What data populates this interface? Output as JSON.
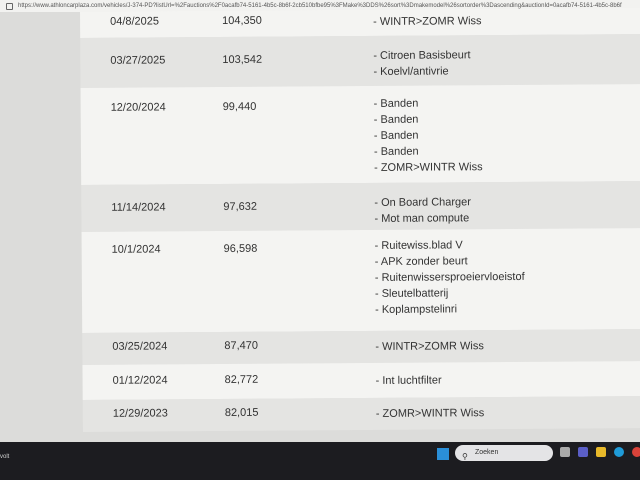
{
  "browser": {
    "url": "https://www.athloncarplaza.com/vehicles/J-374-PD?listUrl=%2Fauctions%2F0acafb74-5161-4b5c-8b6f-2cb510bfbe95%3FMake%3DDS%26sort%3Dmakemodel%26sortorder%3Dascending&auctionId=0acafb74-5161-4b5c-8b6f"
  },
  "rows": [
    {
      "date": "04/8/2025",
      "km": "104,350",
      "items": [
        "- WINTR>ZOMR Wiss"
      ]
    },
    {
      "date": "03/27/2025",
      "km": "103,542",
      "items": [
        "- Citroen Basisbeurt",
        "- Koelvl/antivrie"
      ]
    },
    {
      "date": "12/20/2024",
      "km": "99,440",
      "items": [
        "- Banden",
        "- Banden",
        "- Banden",
        "- Banden",
        "- ZOMR>WINTR Wiss"
      ]
    },
    {
      "date": "11/14/2024",
      "km": "97,632",
      "items": [
        "- On Board Charger",
        "- Mot man compute"
      ]
    },
    {
      "date": "10/1/2024",
      "km": "96,598",
      "items": [
        "- Ruitewiss.blad V",
        "- APK zonder beurt",
        "- Ruitenwissersproeiervloeistof",
        "- Sleutelbatterij",
        "- Koplampstelinri"
      ]
    },
    {
      "date": "03/25/2024",
      "km": "87,470",
      "items": [
        "- WINTR>ZOMR Wiss"
      ]
    },
    {
      "date": "01/12/2024",
      "km": "82,772",
      "items": [
        "- Int luchtfilter"
      ]
    },
    {
      "date": "12/29/2023",
      "km": "82,015",
      "items": [
        "- ZOMR>WINTR Wiss"
      ]
    }
  ],
  "taskbar": {
    "search_placeholder": "Zoeken",
    "left_text": "volt"
  }
}
